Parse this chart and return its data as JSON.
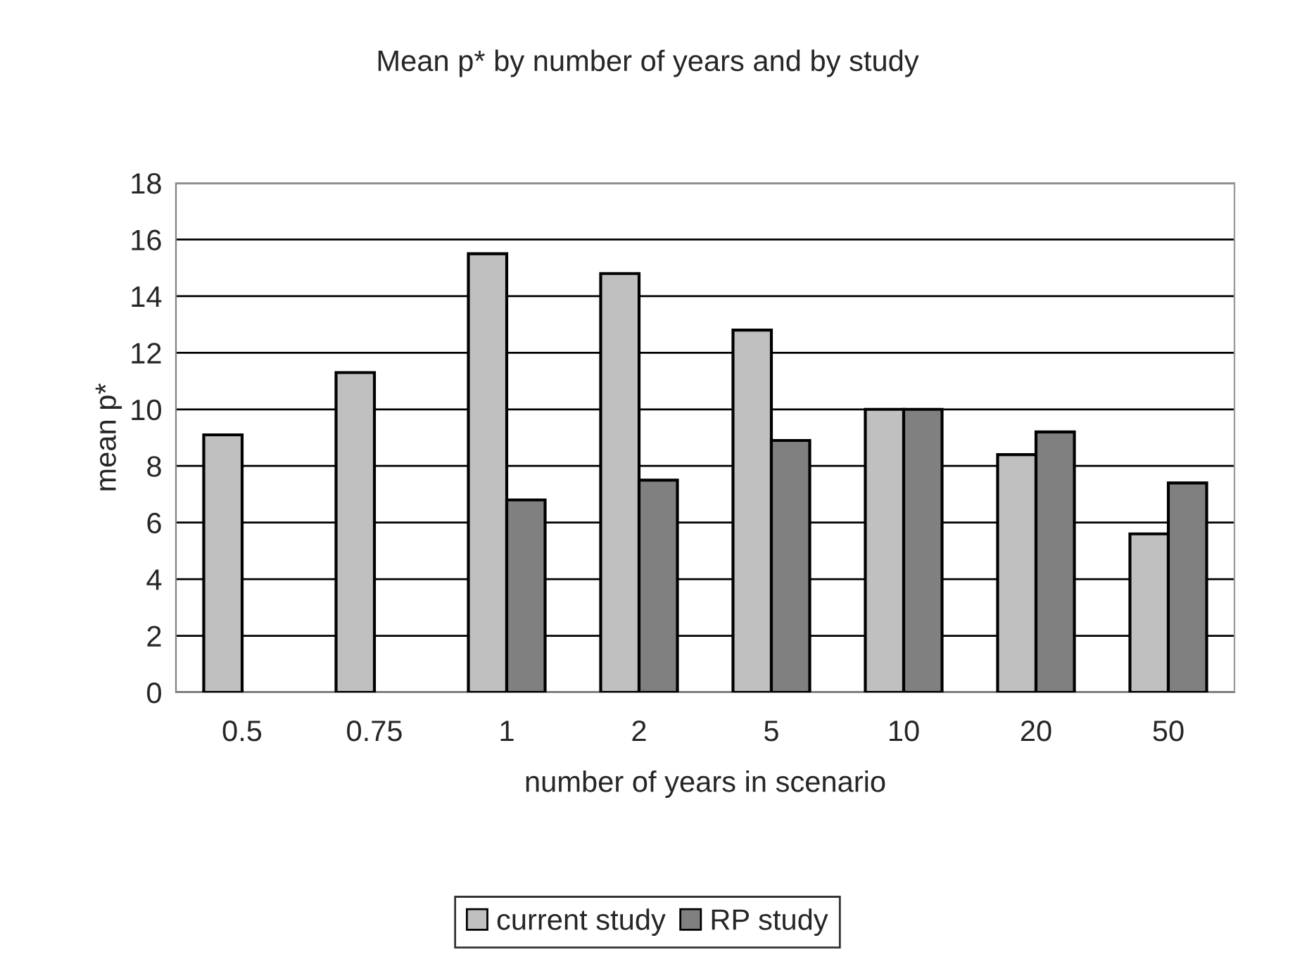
{
  "chart_data": {
    "type": "bar",
    "title": "Mean p* by number of years and by study",
    "xlabel": "number of years in scenario",
    "ylabel": "mean p*",
    "categories": [
      "0.5",
      "0.75",
      "1",
      "2",
      "5",
      "10",
      "20",
      "50"
    ],
    "series": [
      {
        "name": "current study",
        "color": "#c0c0c0",
        "values": [
          9.1,
          11.3,
          15.5,
          14.8,
          12.8,
          10.0,
          8.4,
          5.6
        ]
      },
      {
        "name": "RP study",
        "color": "#808080",
        "values": [
          null,
          null,
          6.8,
          7.5,
          8.9,
          10.0,
          9.2,
          7.4
        ]
      }
    ],
    "ylim": [
      0,
      18
    ],
    "yticks": [
      0,
      2,
      4,
      6,
      8,
      10,
      12,
      14,
      16,
      18
    ],
    "grid": "y",
    "legend": "bottom"
  }
}
